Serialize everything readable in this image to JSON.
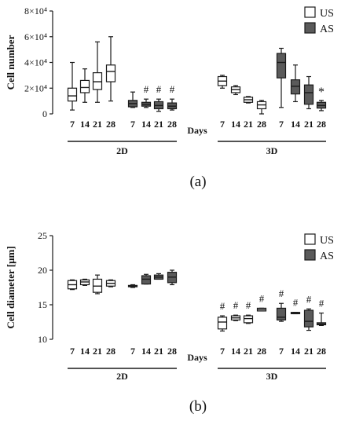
{
  "chart_data": [
    {
      "type": "box",
      "panel_label": "(a)",
      "ylabel": "Cell number",
      "yticks": [
        "0",
        "2×10⁴",
        "4×10⁴",
        "6×10⁴",
        "8×10⁴"
      ],
      "ylim": [
        0,
        80000
      ],
      "xaxis_word": "Days",
      "groups": [
        {
          "label": "2D",
          "series": [
            {
              "name": "US",
              "days": [
                "7",
                "14",
                "21",
                "28"
              ],
              "boxes": [
                {
                  "min": 3000,
                  "q1": 10000,
                  "median": 14000,
                  "q3": 20000,
                  "max": 40000,
                  "mark": ""
                },
                {
                  "min": 9000,
                  "q1": 16500,
                  "median": 20500,
                  "q3": 26000,
                  "max": 35000,
                  "mark": ""
                },
                {
                  "min": 9000,
                  "q1": 19000,
                  "median": 25000,
                  "q3": 32000,
                  "max": 56000,
                  "mark": ""
                },
                {
                  "min": 10000,
                  "q1": 25000,
                  "median": 33000,
                  "q3": 38000,
                  "max": 60000,
                  "mark": ""
                }
              ]
            },
            {
              "name": "AS",
              "days": [
                "7",
                "14",
                "21",
                "28"
              ],
              "boxes": [
                {
                  "min": 5000,
                  "q1": 5500,
                  "median": 8000,
                  "q3": 10500,
                  "max": 17000,
                  "mark": ""
                },
                {
                  "min": 5000,
                  "q1": 6000,
                  "median": 7500,
                  "q3": 9000,
                  "max": 11500,
                  "mark": "#"
                },
                {
                  "min": 2000,
                  "q1": 4000,
                  "median": 6500,
                  "q3": 9500,
                  "max": 11500,
                  "mark": "#"
                },
                {
                  "min": 3000,
                  "q1": 4000,
                  "median": 6000,
                  "q3": 8500,
                  "max": 11500,
                  "mark": "#"
                }
              ]
            }
          ]
        },
        {
          "label": "3D",
          "series": [
            {
              "name": "US",
              "days": [
                "7",
                "14",
                "21",
                "28"
              ],
              "boxes": [
                {
                  "min": 20000,
                  "q1": 22000,
                  "median": 25500,
                  "q3": 29000,
                  "max": 30000,
                  "mark": ""
                },
                {
                  "min": 15000,
                  "q1": 16500,
                  "median": 19000,
                  "q3": 21000,
                  "max": 22000,
                  "mark": ""
                },
                {
                  "min": 8500,
                  "q1": 9000,
                  "median": 11000,
                  "q3": 13000,
                  "max": 13500,
                  "mark": ""
                },
                {
                  "min": 0,
                  "q1": 4000,
                  "median": 7000,
                  "q3": 9500,
                  "max": 10500,
                  "mark": ""
                }
              ]
            },
            {
              "name": "AS",
              "days": [
                "7",
                "14",
                "21",
                "28"
              ],
              "boxes": [
                {
                  "min": 5000,
                  "q1": 28000,
                  "median": 40000,
                  "q3": 47000,
                  "max": 51000,
                  "mark": ""
                },
                {
                  "min": 9500,
                  "q1": 15500,
                  "median": 21500,
                  "q3": 26500,
                  "max": 38000,
                  "mark": ""
                },
                {
                  "min": 4000,
                  "q1": 7500,
                  "median": 16500,
                  "q3": 22500,
                  "max": 29000,
                  "mark": ""
                },
                {
                  "min": 2500,
                  "q1": 4500,
                  "median": 6500,
                  "q3": 9000,
                  "max": 10500,
                  "mark": "*"
                }
              ]
            }
          ]
        }
      ]
    },
    {
      "type": "box",
      "panel_label": "(b)",
      "ylabel": "Cell diameter [μm]",
      "yticks": [
        "10",
        "15",
        "20",
        "25"
      ],
      "ylim": [
        10,
        25
      ],
      "xaxis_word": "Days",
      "groups": [
        {
          "label": "2D",
          "series": [
            {
              "name": "US",
              "days": [
                "7",
                "14",
                "21",
                "28"
              ],
              "boxes": [
                {
                  "min": 17.2,
                  "q1": 17.3,
                  "median": 17.9,
                  "q3": 18.5,
                  "max": 18.6,
                  "mark": ""
                },
                {
                  "min": 17.8,
                  "q1": 17.9,
                  "median": 18.3,
                  "q3": 18.6,
                  "max": 18.7,
                  "mark": ""
                },
                {
                  "min": 16.6,
                  "q1": 16.8,
                  "median": 17.7,
                  "q3": 18.7,
                  "max": 19.3,
                  "mark": ""
                },
                {
                  "min": 17.6,
                  "q1": 17.7,
                  "median": 18.1,
                  "q3": 18.5,
                  "max": 18.6,
                  "mark": ""
                }
              ]
            },
            {
              "name": "AS",
              "days": [
                "7",
                "14",
                "21",
                "28"
              ],
              "boxes": [
                {
                  "min": 17.5,
                  "q1": 17.6,
                  "median": 17.7,
                  "q3": 17.8,
                  "max": 17.9,
                  "mark": ""
                },
                {
                  "min": 18.0,
                  "q1": 18.0,
                  "median": 18.7,
                  "q3": 19.2,
                  "max": 19.4,
                  "mark": ""
                },
                {
                  "min": 18.7,
                  "q1": 18.7,
                  "median": 19.0,
                  "q3": 19.3,
                  "max": 19.5,
                  "mark": ""
                },
                {
                  "min": 17.9,
                  "q1": 18.2,
                  "median": 19.0,
                  "q3": 19.7,
                  "max": 20.0,
                  "mark": ""
                }
              ]
            }
          ]
        },
        {
          "label": "3D",
          "series": [
            {
              "name": "US",
              "days": [
                "7",
                "14",
                "21",
                "28"
              ],
              "boxes": [
                {
                  "min": 11.2,
                  "q1": 11.5,
                  "median": 12.5,
                  "q3": 13.2,
                  "max": 13.4,
                  "mark": "#"
                },
                {
                  "min": 12.7,
                  "q1": 12.8,
                  "median": 13.1,
                  "q3": 13.4,
                  "max": 13.5,
                  "mark": "#"
                },
                {
                  "min": 12.3,
                  "q1": 12.4,
                  "median": 13.0,
                  "q3": 13.4,
                  "max": 13.5,
                  "mark": "#"
                },
                {
                  "min": 14.1,
                  "q1": 14.1,
                  "median": 14.3,
                  "q3": 14.5,
                  "max": 14.5,
                  "mark": "#"
                }
              ]
            },
            {
              "name": "AS",
              "days": [
                "7",
                "14",
                "21",
                "28"
              ],
              "boxes": [
                {
                  "min": 12.6,
                  "q1": 12.8,
                  "median": 13.2,
                  "q3": 14.5,
                  "max": 15.2,
                  "mark": "#"
                },
                {
                  "min": 13.7,
                  "q1": 13.7,
                  "median": 13.8,
                  "q3": 13.9,
                  "max": 13.9,
                  "mark": "#"
                },
                {
                  "min": 11.3,
                  "q1": 11.8,
                  "median": 12.6,
                  "q3": 14.2,
                  "max": 14.4,
                  "mark": "#"
                },
                {
                  "min": 12.0,
                  "q1": 12.1,
                  "median": 12.2,
                  "q3": 12.4,
                  "max": 13.8,
                  "mark": "#"
                }
              ]
            }
          ]
        }
      ]
    }
  ],
  "colors": {
    "US": "#ffffff",
    "AS": "#5a5a5a",
    "line": "#1a1a1a"
  }
}
